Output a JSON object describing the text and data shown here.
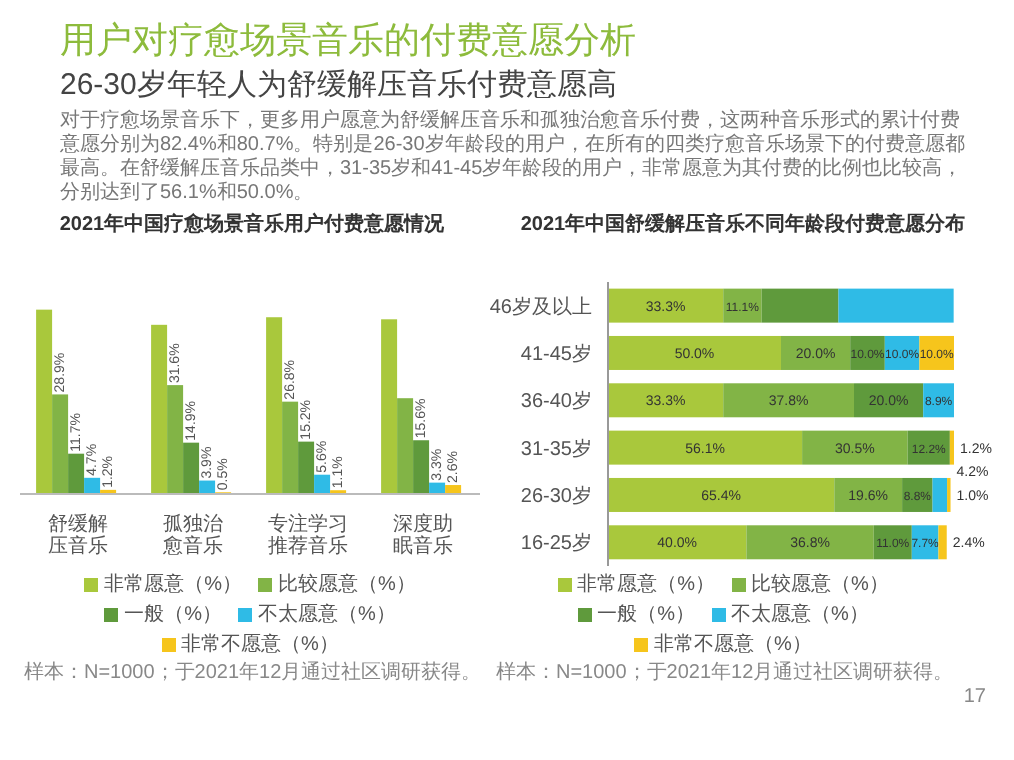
{
  "chart_data": [
    {
      "type": "bar",
      "title": "2021年中国疗愈场景音乐用户付费意愿情况",
      "categories": [
        "舒缓解压音乐",
        "孤独治愈音乐",
        "专注学习推荐音乐",
        "深度助眠音乐"
      ],
      "series": [
        {
          "name": "非常愿意（%）",
          "color": "#a9c83c",
          "values": [
            53.5,
            49.1,
            51.3,
            50.7
          ],
          "value_labels": [
            null,
            null,
            null,
            null
          ]
        },
        {
          "name": "比较愿意（%）",
          "color": "#82b446",
          "values": [
            28.9,
            31.6,
            26.8,
            27.8
          ],
          "value_labels": [
            "28.9%",
            "31.6%",
            "26.8%",
            null
          ]
        },
        {
          "name": "一般（%）",
          "color": "#5f9a3c",
          "values": [
            11.7,
            14.9,
            15.2,
            15.6
          ],
          "value_labels": [
            "11.7%",
            "14.9%",
            "15.2%",
            "15.6%"
          ]
        },
        {
          "name": "不太愿意（%）",
          "color": "#2fbbe6",
          "values": [
            4.7,
            3.9,
            5.6,
            3.3
          ],
          "value_labels": [
            "4.7%",
            "3.9%",
            "5.6%",
            "3.3%"
          ]
        },
        {
          "name": "非常不愿意（%）",
          "color": "#f6c51c",
          "values": [
            1.2,
            0.5,
            1.1,
            2.6
          ],
          "value_labels": [
            "1.2%",
            "0.5%",
            "1.1%",
            "2.6%"
          ]
        }
      ],
      "legend": "bottom",
      "annotations": [
        "用户对疗愈场景音乐的付费意愿分析",
        "26-30岁年轻人为舒缓解压音乐付费意愿高",
        "对于疗愈场景音乐下，更多用户愿意为舒缓解压音乐和孤独治愈音乐付费，这两种音乐形式的累计付费意愿分别为82.4%和80.7%。特别是26-30岁年龄段的用户，在所有的四类疗愈音乐场景下的付费意愿都最高。在舒缓解压音乐品类中，31-35岁和41-45岁年龄段的用户，非常愿意为其付费的比例也比较高，分别达到了56.1%和50.0%。",
        "样本：N=1000；于2021年12月通过社区调研获得。"
      ]
    },
    {
      "type": "bar",
      "orientation": "horizontal",
      "stacked": true,
      "title": "2021年中国舒缓解压音乐不同年龄段付费意愿分布",
      "categories": [
        "46岁及以上",
        "41-45岁",
        "36-40岁",
        "31-35岁",
        "26-30岁",
        "16-25岁"
      ],
      "series": [
        {
          "name": "非常愿意（%）",
          "color": "#a9c83c",
          "values": [
            33.3,
            50.0,
            33.3,
            56.1,
            65.4,
            40.0
          ],
          "value_labels": [
            "33.3%",
            "50.0%",
            "33.3%",
            "56.1%",
            "65.4%",
            "40.0%"
          ]
        },
        {
          "name": "比较愿意（%）",
          "color": "#82b446",
          "values": [
            11.1,
            20.0,
            37.8,
            30.5,
            19.6,
            36.8
          ],
          "value_labels": [
            "11.1%",
            "20.0%",
            "37.8%",
            "30.5%",
            "19.6%",
            "36.8%"
          ]
        },
        {
          "name": "一般（%）",
          "color": "#5f9a3c",
          "values": [
            22.2,
            10.0,
            20.0,
            12.2,
            8.8,
            11.0
          ],
          "value_labels": [
            null,
            "10.0%",
            "20.0%",
            "12.2%",
            "8.8%",
            "11.0%"
          ]
        },
        {
          "name": "不太愿意（%）",
          "color": "#2fbbe6",
          "values": [
            33.3,
            10.0,
            8.9,
            null,
            4.2,
            7.7
          ],
          "value_labels": [
            null,
            "10.0%",
            "8.9%",
            null,
            "4.2%",
            "7.7%"
          ]
        },
        {
          "name": "非常不愿意（%）",
          "color": "#f6c51c",
          "values": [
            null,
            10.0,
            null,
            1.2,
            1.0,
            2.4
          ],
          "value_labels": [
            null,
            "10.0%",
            null,
            "1.2%",
            "1.0%",
            "2.4%"
          ]
        }
      ],
      "legend": "bottom",
      "annotations": [
        "样本：N=1000；于2021年12月通过社区调研获得。",
        "17"
      ]
    }
  ]
}
